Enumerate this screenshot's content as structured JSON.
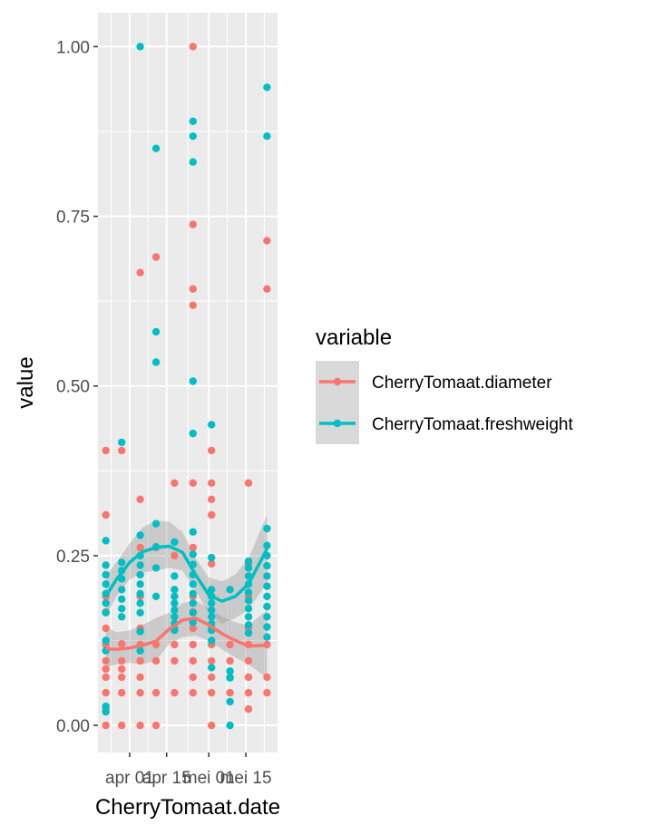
{
  "chart_data": {
    "type": "scatter",
    "xlabel": "CherryTomaat.date",
    "ylabel": "value",
    "x_ticks": [
      "apr 01",
      "apr 15",
      "mei 01",
      "mei 15"
    ],
    "y_ticks": [
      "0.00",
      "0.25",
      "0.50",
      "0.75",
      "1.00"
    ],
    "ylim": [
      -0.04,
      1.05
    ],
    "xlim": [
      "2023-03-20",
      "2023-05-20"
    ],
    "grid": true,
    "legend": {
      "title": "variable",
      "placement": "right",
      "entries": [
        {
          "label": "CherryTomaat.diameter",
          "color": "#F8766D"
        },
        {
          "label": "CherryTomaat.freshweight",
          "color": "#00BFC4"
        }
      ]
    },
    "series": [
      {
        "name": "CherryTomaat.diameter",
        "color": "#F8766D",
        "points": [
          [
            "2023-03-23",
            0.405
          ],
          [
            "2023-03-23",
            0.31
          ],
          [
            "2023-03-23",
            0.19
          ],
          [
            "2023-03-23",
            0.167
          ],
          [
            "2023-03-23",
            0.143
          ],
          [
            "2023-03-23",
            0.119
          ],
          [
            "2023-03-23",
            0.095
          ],
          [
            "2023-03-23",
            0.083
          ],
          [
            "2023-03-23",
            0.071
          ],
          [
            "2023-03-23",
            0.048
          ],
          [
            "2023-03-23",
            0.024
          ],
          [
            "2023-03-23",
            0.0
          ],
          [
            "2023-03-29",
            0.405
          ],
          [
            "2023-03-29",
            0.12
          ],
          [
            "2023-03-29",
            0.095
          ],
          [
            "2023-03-29",
            0.083
          ],
          [
            "2023-03-29",
            0.071
          ],
          [
            "2023-03-29",
            0.048
          ],
          [
            "2023-03-29",
            0.0
          ],
          [
            "2023-04-05",
            0.667
          ],
          [
            "2023-04-05",
            0.333
          ],
          [
            "2023-04-05",
            0.262
          ],
          [
            "2023-04-05",
            0.19
          ],
          [
            "2023-04-05",
            0.143
          ],
          [
            "2023-04-05",
            0.119
          ],
          [
            "2023-04-05",
            0.095
          ],
          [
            "2023-04-05",
            0.071
          ],
          [
            "2023-04-05",
            0.048
          ],
          [
            "2023-04-05",
            0.0
          ],
          [
            "2023-04-11",
            0.69
          ],
          [
            "2023-04-11",
            0.262
          ],
          [
            "2023-04-11",
            0.119
          ],
          [
            "2023-04-11",
            0.095
          ],
          [
            "2023-04-11",
            0.048
          ],
          [
            "2023-04-11",
            0.0
          ],
          [
            "2023-04-18",
            0.357
          ],
          [
            "2023-04-18",
            0.25
          ],
          [
            "2023-04-18",
            0.19
          ],
          [
            "2023-04-18",
            0.143
          ],
          [
            "2023-04-18",
            0.119
          ],
          [
            "2023-04-18",
            0.095
          ],
          [
            "2023-04-18",
            0.048
          ],
          [
            "2023-04-25",
            1.0
          ],
          [
            "2023-04-25",
            0.738
          ],
          [
            "2023-04-25",
            0.643
          ],
          [
            "2023-04-25",
            0.619
          ],
          [
            "2023-04-25",
            0.357
          ],
          [
            "2023-04-25",
            0.262
          ],
          [
            "2023-04-25",
            0.19
          ],
          [
            "2023-04-25",
            0.167
          ],
          [
            "2023-04-25",
            0.143
          ],
          [
            "2023-04-25",
            0.119
          ],
          [
            "2023-04-25",
            0.095
          ],
          [
            "2023-04-25",
            0.071
          ],
          [
            "2023-04-25",
            0.048
          ],
          [
            "2023-05-02",
            0.405
          ],
          [
            "2023-05-02",
            0.357
          ],
          [
            "2023-05-02",
            0.333
          ],
          [
            "2023-05-02",
            0.31
          ],
          [
            "2023-05-02",
            0.238
          ],
          [
            "2023-05-02",
            0.19
          ],
          [
            "2023-05-02",
            0.143
          ],
          [
            "2023-05-02",
            0.119
          ],
          [
            "2023-05-02",
            0.095
          ],
          [
            "2023-05-02",
            0.071
          ],
          [
            "2023-05-02",
            0.048
          ],
          [
            "2023-05-02",
            0.0
          ],
          [
            "2023-05-09",
            0.119
          ],
          [
            "2023-05-09",
            0.095
          ],
          [
            "2023-05-09",
            0.071
          ],
          [
            "2023-05-09",
            0.048
          ],
          [
            "2023-05-16",
            0.357
          ],
          [
            "2023-05-16",
            0.238
          ],
          [
            "2023-05-16",
            0.19
          ],
          [
            "2023-05-16",
            0.143
          ],
          [
            "2023-05-16",
            0.119
          ],
          [
            "2023-05-16",
            0.095
          ],
          [
            "2023-05-16",
            0.071
          ],
          [
            "2023-05-16",
            0.048
          ],
          [
            "2023-05-16",
            0.024
          ],
          [
            "2023-05-23",
            0.714
          ],
          [
            "2023-05-23",
            0.643
          ],
          [
            "2023-05-23",
            0.119
          ],
          [
            "2023-05-23",
            0.071
          ],
          [
            "2023-05-23",
            0.048
          ]
        ],
        "smooth": [
          [
            "2023-03-23",
            0.113
          ],
          [
            "2023-03-27",
            0.112
          ],
          [
            "2023-04-01",
            0.114
          ],
          [
            "2023-04-06",
            0.118
          ],
          [
            "2023-04-11",
            0.124
          ],
          [
            "2023-04-16",
            0.142
          ],
          [
            "2023-04-21",
            0.155
          ],
          [
            "2023-04-26",
            0.158
          ],
          [
            "2023-05-01",
            0.148
          ],
          [
            "2023-05-06",
            0.135
          ],
          [
            "2023-05-11",
            0.125
          ],
          [
            "2023-05-16",
            0.117
          ],
          [
            "2023-05-23",
            0.118
          ]
        ],
        "band_lower": [
          0.085,
          0.09,
          0.092,
          0.09,
          0.095,
          0.12,
          0.13,
          0.132,
          0.125,
          0.112,
          0.1,
          0.09,
          0.07
        ],
        "band_upper": [
          0.145,
          0.137,
          0.14,
          0.148,
          0.158,
          0.166,
          0.18,
          0.184,
          0.172,
          0.16,
          0.152,
          0.147,
          0.17
        ]
      },
      {
        "name": "CherryTomaat.freshweight",
        "color": "#00BFC4",
        "points": [
          [
            "2023-03-23",
            0.272
          ],
          [
            "2023-03-23",
            0.236
          ],
          [
            "2023-03-23",
            0.222
          ],
          [
            "2023-03-23",
            0.208
          ],
          [
            "2023-03-23",
            0.194
          ],
          [
            "2023-03-23",
            0.18
          ],
          [
            "2023-03-23",
            0.166
          ],
          [
            "2023-03-23",
            0.125
          ],
          [
            "2023-03-23",
            0.11
          ],
          [
            "2023-03-23",
            0.028
          ],
          [
            "2023-03-23",
            0.02
          ],
          [
            "2023-03-29",
            0.417
          ],
          [
            "2023-03-29",
            0.24
          ],
          [
            "2023-03-29",
            0.228
          ],
          [
            "2023-03-29",
            0.216
          ],
          [
            "2023-03-29",
            0.2
          ],
          [
            "2023-03-29",
            0.186
          ],
          [
            "2023-03-29",
            0.172
          ],
          [
            "2023-03-29",
            0.16
          ],
          [
            "2023-04-05",
            1.0
          ],
          [
            "2023-04-05",
            0.28
          ],
          [
            "2023-04-05",
            0.25
          ],
          [
            "2023-04-05",
            0.236
          ],
          [
            "2023-04-05",
            0.222
          ],
          [
            "2023-04-05",
            0.208
          ],
          [
            "2023-04-05",
            0.194
          ],
          [
            "2023-04-05",
            0.18
          ],
          [
            "2023-04-05",
            0.166
          ],
          [
            "2023-04-05",
            0.138
          ],
          [
            "2023-04-05",
            0.11
          ],
          [
            "2023-04-11",
            0.85
          ],
          [
            "2023-04-11",
            0.58
          ],
          [
            "2023-04-11",
            0.535
          ],
          [
            "2023-04-11",
            0.297
          ],
          [
            "2023-04-11",
            0.263
          ],
          [
            "2023-04-11",
            0.232
          ],
          [
            "2023-04-11",
            0.19
          ],
          [
            "2023-04-18",
            0.27
          ],
          [
            "2023-04-18",
            0.22
          ],
          [
            "2023-04-18",
            0.2
          ],
          [
            "2023-04-18",
            0.19
          ],
          [
            "2023-04-18",
            0.18
          ],
          [
            "2023-04-18",
            0.17
          ],
          [
            "2023-04-18",
            0.16
          ],
          [
            "2023-04-18",
            0.15
          ],
          [
            "2023-04-18",
            0.14
          ],
          [
            "2023-04-25",
            0.89
          ],
          [
            "2023-04-25",
            0.868
          ],
          [
            "2023-04-25",
            0.83
          ],
          [
            "2023-04-25",
            0.507
          ],
          [
            "2023-04-25",
            0.43
          ],
          [
            "2023-04-25",
            0.285
          ],
          [
            "2023-04-25",
            0.252
          ],
          [
            "2023-04-25",
            0.237
          ],
          [
            "2023-04-25",
            0.222
          ],
          [
            "2023-04-25",
            0.208
          ],
          [
            "2023-04-25",
            0.194
          ],
          [
            "2023-04-25",
            0.18
          ],
          [
            "2023-04-25",
            0.166
          ],
          [
            "2023-04-25",
            0.152
          ],
          [
            "2023-05-02",
            0.443
          ],
          [
            "2023-05-02",
            0.247
          ],
          [
            "2023-05-02",
            0.2
          ],
          [
            "2023-05-02",
            0.19
          ],
          [
            "2023-05-02",
            0.18
          ],
          [
            "2023-05-02",
            0.17
          ],
          [
            "2023-05-02",
            0.16
          ],
          [
            "2023-05-02",
            0.15
          ],
          [
            "2023-05-02",
            0.14
          ],
          [
            "2023-05-02",
            0.125
          ],
          [
            "2023-05-02",
            0.085
          ],
          [
            "2023-05-09",
            0.2
          ],
          [
            "2023-05-09",
            0.08
          ],
          [
            "2023-05-09",
            0.07
          ],
          [
            "2023-05-09",
            0.035
          ],
          [
            "2023-05-09",
            0.0
          ],
          [
            "2023-05-16",
            0.242
          ],
          [
            "2023-05-16",
            0.232
          ],
          [
            "2023-05-16",
            0.22
          ],
          [
            "2023-05-16",
            0.208
          ],
          [
            "2023-05-16",
            0.196
          ],
          [
            "2023-05-16",
            0.184
          ],
          [
            "2023-05-16",
            0.172
          ],
          [
            "2023-05-16",
            0.16
          ],
          [
            "2023-05-16",
            0.148
          ],
          [
            "2023-05-16",
            0.136
          ],
          [
            "2023-05-23",
            0.94
          ],
          [
            "2023-05-23",
            0.868
          ],
          [
            "2023-05-23",
            0.29
          ],
          [
            "2023-05-23",
            0.265
          ],
          [
            "2023-05-23",
            0.25
          ],
          [
            "2023-05-23",
            0.235
          ],
          [
            "2023-05-23",
            0.22
          ],
          [
            "2023-05-23",
            0.205
          ],
          [
            "2023-05-23",
            0.19
          ],
          [
            "2023-05-23",
            0.175
          ],
          [
            "2023-05-23",
            0.16
          ],
          [
            "2023-05-23",
            0.145
          ],
          [
            "2023-05-23",
            0.13
          ]
        ],
        "smooth": [
          [
            "2023-03-23",
            0.19
          ],
          [
            "2023-03-27",
            0.215
          ],
          [
            "2023-04-01",
            0.24
          ],
          [
            "2023-04-06",
            0.256
          ],
          [
            "2023-04-11",
            0.262
          ],
          [
            "2023-04-16",
            0.264
          ],
          [
            "2023-04-21",
            0.255
          ],
          [
            "2023-04-26",
            0.222
          ],
          [
            "2023-05-01",
            0.192
          ],
          [
            "2023-05-06",
            0.183
          ],
          [
            "2023-05-11",
            0.19
          ],
          [
            "2023-05-16",
            0.208
          ],
          [
            "2023-05-23",
            0.26
          ]
        ],
        "band_lower": [
          0.16,
          0.19,
          0.215,
          0.225,
          0.228,
          0.232,
          0.228,
          0.198,
          0.165,
          0.15,
          0.158,
          0.17,
          0.21
        ],
        "band_upper": [
          0.22,
          0.24,
          0.268,
          0.292,
          0.302,
          0.3,
          0.285,
          0.246,
          0.218,
          0.212,
          0.222,
          0.246,
          0.31
        ]
      }
    ]
  }
}
